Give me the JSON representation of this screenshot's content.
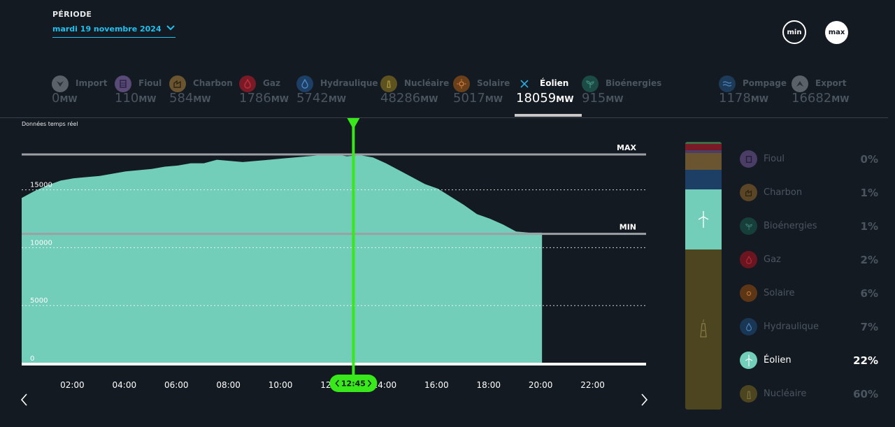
{
  "periode": {
    "label": "PÉRIODE",
    "date": "mardi 19 novembre 2024"
  },
  "buttons": {
    "min": "min",
    "max": "max"
  },
  "sources": [
    {
      "name": "Import",
      "value": "0",
      "unit": "MW",
      "icon": "import-icon",
      "color": "#5a6168"
    },
    {
      "name": "Fioul",
      "value": "110",
      "unit": "MW",
      "icon": "fioul-icon",
      "color": "#5a4a78"
    },
    {
      "name": "Charbon",
      "value": "584",
      "unit": "MW",
      "icon": "charbon-icon",
      "color": "#6a5530"
    },
    {
      "name": "Gaz",
      "value": "1786",
      "unit": "MW",
      "icon": "gaz-icon",
      "color": "#7a1a26"
    },
    {
      "name": "Hydraulique",
      "value": "5742",
      "unit": "MW",
      "icon": "hydraulique-icon",
      "color": "#1d3f66"
    },
    {
      "name": "Nucléaire",
      "value": "48286",
      "unit": "MW",
      "icon": "nucleaire-icon",
      "color": "#5e5320"
    },
    {
      "name": "Solaire",
      "value": "5017",
      "unit": "MW",
      "icon": "solaire-icon",
      "color": "#6b3f1a"
    },
    {
      "name": "Éolien",
      "value": "18059",
      "unit": "MW",
      "icon": "eolien-icon",
      "color": "#2aa8e0"
    },
    {
      "name": "Bioénergies",
      "value": "915",
      "unit": "MW",
      "icon": "bioenergies-icon",
      "color": "#1c4a44"
    },
    {
      "name": "Pompage",
      "value": "1178",
      "unit": "MW",
      "icon": "pompage-icon",
      "color": "#1d3a58"
    },
    {
      "name": "Export",
      "value": "16682",
      "unit": "MW",
      "icon": "export-icon",
      "color": "#5a6168"
    }
  ],
  "realtime_label": "Données temps réel",
  "cursor": {
    "time": "12:45"
  },
  "legend": [
    {
      "name": "Fioul",
      "pct": "0%",
      "icon": "fioul-icon",
      "color": "#4a3d66"
    },
    {
      "name": "Charbon",
      "pct": "1%",
      "icon": "charbon-icon",
      "color": "#5a4626"
    },
    {
      "name": "Bioénergies",
      "pct": "1%",
      "icon": "bioenergies-icon",
      "color": "#173f3a"
    },
    {
      "name": "Gaz",
      "pct": "2%",
      "icon": "gaz-icon",
      "color": "#6a1520"
    },
    {
      "name": "Solaire",
      "pct": "6%",
      "icon": "solaire-icon",
      "color": "#5d3616"
    },
    {
      "name": "Hydraulique",
      "pct": "7%",
      "icon": "hydraulique-icon",
      "color": "#193655"
    },
    {
      "name": "Éolien",
      "pct": "22%",
      "icon": "eolien-icon",
      "color": "#72cdb9"
    },
    {
      "name": "Nucléaire",
      "pct": "60%",
      "icon": "nucleaire-icon",
      "color": "#4d4420"
    }
  ],
  "stack_colors": {
    "bioenergies": "#3d6e48",
    "gaz": "#7a1a26",
    "fioul": "#4a3d66",
    "charbon": "#6a5530",
    "solaire": "#6b3f1a",
    "hydraulique": "#1d3f66",
    "eolien": "#72cdb9",
    "nucleaire": "#4d4420"
  },
  "colors": {
    "area": "#72cdb9",
    "cursor": "#39e81a",
    "background": "#141a21"
  },
  "chart_data": {
    "type": "area",
    "title": "Éolien",
    "xlabel": "",
    "ylabel": "MW",
    "xlim": [
      0,
      24
    ],
    "ylim": [
      0,
      18059
    ],
    "x_ticks": [
      {
        "value": 2,
        "label": "02:00"
      },
      {
        "value": 4,
        "label": "04:00"
      },
      {
        "value": 6,
        "label": "06:00"
      },
      {
        "value": 8,
        "label": "08:00"
      },
      {
        "value": 10,
        "label": "10:00"
      },
      {
        "value": 12,
        "label": "12:00"
      },
      {
        "value": 14,
        "label": "14:00"
      },
      {
        "value": 16,
        "label": "16:00"
      },
      {
        "value": 18,
        "label": "18:00"
      },
      {
        "value": 20,
        "label": "20:00"
      },
      {
        "value": 22,
        "label": "22:00"
      }
    ],
    "y_ticks": [
      {
        "value": 0,
        "label": "0"
      },
      {
        "value": 5000,
        "label": "5000"
      },
      {
        "value": 10000,
        "label": "10000"
      },
      {
        "value": 15000,
        "label": "15000"
      }
    ],
    "reference_lines": [
      {
        "label": "MAX",
        "value": 18059
      },
      {
        "label": "MIN",
        "value": 11200
      }
    ],
    "series": [
      {
        "name": "Éolien",
        "x": [
          0,
          0.5,
          1,
          1.5,
          2,
          2.5,
          3,
          3.5,
          4,
          4.5,
          5,
          5.5,
          6,
          6.5,
          7,
          7.5,
          8,
          8.5,
          9,
          9.5,
          10,
          10.5,
          11,
          11.5,
          12,
          12.5,
          13,
          13.5,
          14,
          14.5,
          15,
          15.5,
          16,
          16.5,
          17,
          17.5,
          18,
          18.5,
          19,
          19.5,
          20
        ],
        "values": [
          14300,
          14900,
          15400,
          15800,
          16000,
          16100,
          16200,
          16400,
          16600,
          16700,
          16800,
          17000,
          17100,
          17300,
          17300,
          17600,
          17500,
          17400,
          17500,
          17600,
          17700,
          17800,
          17900,
          18000,
          18100,
          17900,
          18000,
          17800,
          17300,
          16700,
          16100,
          15500,
          15100,
          14400,
          13700,
          12900,
          12500,
          12000,
          11400,
          11300,
          11300
        ]
      }
    ]
  }
}
